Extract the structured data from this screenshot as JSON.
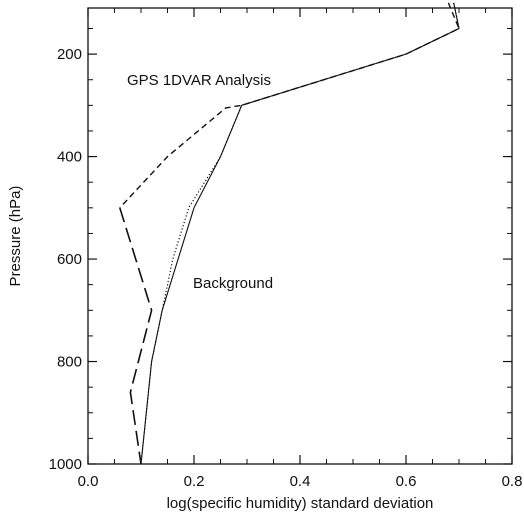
{
  "chart_data": {
    "type": "line",
    "xlabel": "log(specific humidity) standard deviation",
    "ylabel": "Pressure (hPa)",
    "xlim": [
      0.0,
      0.8
    ],
    "ylim": [
      1000,
      100
    ],
    "y_inverted": true,
    "grid": false,
    "x_ticks": [
      "0.0",
      "0.2",
      "0.4",
      "0.6",
      "0.8"
    ],
    "y_ticks": [
      "200",
      "400",
      "600",
      "800",
      "1000"
    ],
    "annotations": {
      "analysis": "GPS 1DVAR Analysis",
      "background": "Background"
    },
    "series": [
      {
        "style": "solid",
        "points": [
          [
            0.69,
            100
          ],
          [
            0.7,
            150
          ],
          [
            0.6,
            200
          ],
          [
            0.29,
            300
          ],
          [
            0.25,
            400
          ],
          [
            0.2,
            500
          ],
          [
            0.17,
            600
          ],
          [
            0.14,
            700
          ],
          [
            0.12,
            800
          ],
          [
            0.11,
            900
          ],
          [
            0.1,
            1000
          ]
        ]
      },
      {
        "style": "dotted",
        "points": [
          [
            0.69,
            100
          ],
          [
            0.7,
            150
          ],
          [
            0.6,
            200
          ],
          [
            0.29,
            300
          ],
          [
            0.25,
            400
          ],
          [
            0.19,
            500
          ],
          [
            0.16,
            600
          ],
          [
            0.14,
            700
          ],
          [
            0.12,
            800
          ],
          [
            0.11,
            900
          ],
          [
            0.1,
            1000
          ]
        ]
      },
      {
        "style": "short-dash",
        "points": [
          [
            0.68,
            100
          ],
          [
            0.7,
            150
          ],
          [
            0.6,
            200
          ],
          [
            0.29,
            300
          ],
          [
            0.26,
            305
          ],
          [
            0.15,
            400
          ],
          [
            0.06,
            500
          ]
        ]
      },
      {
        "style": "long-dash",
        "points": [
          [
            0.06,
            500
          ],
          [
            0.12,
            700
          ],
          [
            0.08,
            860
          ],
          [
            0.1,
            1000
          ]
        ]
      }
    ]
  }
}
